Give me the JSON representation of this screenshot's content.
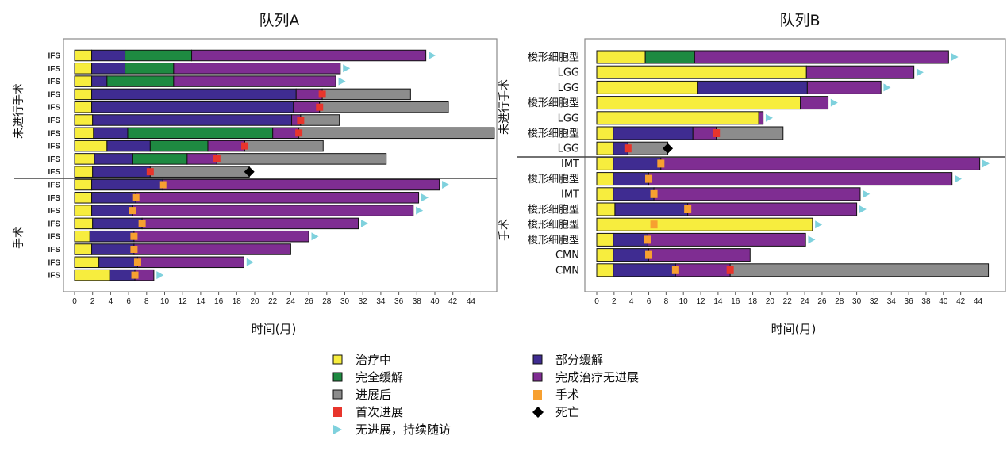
{
  "legend": [
    {
      "key": "on_treatment",
      "label": "治疗中",
      "kind": "rect",
      "color": "#f7ed3e"
    },
    {
      "key": "partial",
      "label": "部分缓解",
      "kind": "rect",
      "color": "#3f2c91"
    },
    {
      "key": "complete",
      "label": "完全缓解",
      "kind": "rect",
      "color": "#1e8a41"
    },
    {
      "key": "off_treatment",
      "label": "完成治疗无进展",
      "kind": "rect",
      "color": "#7f2d92"
    },
    {
      "key": "post_progression",
      "label": "进展后",
      "kind": "rect",
      "color": "#8c8c8c"
    },
    {
      "key": "surgery",
      "label": "手术",
      "kind": "marker",
      "color": "#f7a030"
    },
    {
      "key": "first_progression",
      "label": "首次进展",
      "kind": "marker",
      "color": "#e8352c"
    },
    {
      "key": "death",
      "label": "死亡",
      "kind": "diamond",
      "color": "#000000"
    },
    {
      "key": "follow_up",
      "label": "无进展，持续随访",
      "kind": "arrow",
      "color": "#7fd1dd"
    }
  ],
  "colors": {
    "on_treatment": "#f7ed3e",
    "partial": "#3f2c91",
    "complete": "#1e8a41",
    "off_treatment": "#7f2d92",
    "post_progression": "#8c8c8c",
    "surgery": "#f7a030",
    "first_progression": "#e8352c",
    "death": "#000000",
    "follow_up": "#7fd1dd"
  },
  "chart_data": [
    {
      "type": "swimmer",
      "title": "队列A",
      "xlabel": "时间(月)",
      "xlim": [
        0,
        47
      ],
      "xticks": [
        0,
        2,
        4,
        6,
        8,
        10,
        12,
        14,
        16,
        18,
        20,
        22,
        24,
        26,
        28,
        30,
        32,
        34,
        36,
        38,
        40,
        42,
        44
      ],
      "groups": [
        {
          "label": "未进行手术",
          "rows": [
            0,
            9
          ]
        },
        {
          "label": "手术",
          "rows": [
            10,
            17
          ]
        }
      ],
      "rows": [
        {
          "label": "IFS",
          "segments": [
            [
              "on_treatment",
              0,
              1.9
            ],
            [
              "partial",
              1.9,
              5.6
            ],
            [
              "complete",
              5.6,
              13
            ],
            [
              "off_treatment",
              13,
              39
            ]
          ],
          "arrow": 39.3
        },
        {
          "label": "IFS",
          "segments": [
            [
              "on_treatment",
              0,
              1.9
            ],
            [
              "partial",
              1.9,
              5.6
            ],
            [
              "complete",
              5.6,
              11
            ],
            [
              "off_treatment",
              11,
              29.5
            ]
          ],
          "arrow": 29.8
        },
        {
          "label": "IFS",
          "segments": [
            [
              "on_treatment",
              0,
              1.9
            ],
            [
              "partial",
              1.9,
              3.6
            ],
            [
              "complete",
              3.6,
              11
            ],
            [
              "off_treatment",
              11,
              29
            ]
          ],
          "arrow": 29.3
        },
        {
          "label": "IFS",
          "segments": [
            [
              "on_treatment",
              0,
              1.9
            ],
            [
              "partial",
              1.9,
              24.6
            ],
            [
              "off_treatment",
              24.6,
              27.5
            ],
            [
              "post_progression",
              27.5,
              37.3
            ]
          ],
          "first_progression": 27.5
        },
        {
          "label": "IFS",
          "segments": [
            [
              "on_treatment",
              0,
              1.9
            ],
            [
              "partial",
              1.9,
              24.3
            ],
            [
              "off_treatment",
              24.3,
              27.2
            ],
            [
              "post_progression",
              27.2,
              41.5
            ]
          ],
          "first_progression": 27.2
        },
        {
          "label": "IFS",
          "segments": [
            [
              "on_treatment",
              0,
              2
            ],
            [
              "partial",
              2,
              24.1
            ],
            [
              "off_treatment",
              24.1,
              25.1
            ],
            [
              "post_progression",
              25.1,
              29.4
            ]
          ],
          "first_progression": 25.1
        },
        {
          "label": "IFS",
          "segments": [
            [
              "on_treatment",
              0,
              2.1
            ],
            [
              "partial",
              2.1,
              5.9
            ],
            [
              "complete",
              5.9,
              22
            ],
            [
              "off_treatment",
              22,
              24.9
            ],
            [
              "post_progression",
              24.9,
              46.6
            ]
          ],
          "first_progression": 24.9
        },
        {
          "label": "IFS",
          "segments": [
            [
              "on_treatment",
              0,
              3.6
            ],
            [
              "partial",
              3.6,
              8.4
            ],
            [
              "complete",
              8.4,
              14.8
            ],
            [
              "off_treatment",
              14.8,
              18.9
            ],
            [
              "post_progression",
              18.9,
              27.6
            ]
          ],
          "first_progression": 18.9
        },
        {
          "label": "IFS",
          "segments": [
            [
              "on_treatment",
              0,
              2.2
            ],
            [
              "partial",
              2.2,
              6.4
            ],
            [
              "complete",
              6.4,
              12.5
            ],
            [
              "off_treatment",
              12.5,
              15.8
            ],
            [
              "post_progression",
              15.8,
              34.6
            ]
          ],
          "first_progression": 15.8
        },
        {
          "label": "IFS",
          "segments": [
            [
              "on_treatment",
              0,
              2
            ],
            [
              "partial",
              2,
              8.4
            ],
            [
              "post_progression",
              8.4,
              19.4
            ]
          ],
          "first_progression": 8.4,
          "death": 19.4
        },
        {
          "label": "IFS",
          "segments": [
            [
              "on_treatment",
              0,
              1.9
            ],
            [
              "partial",
              1.9,
              9.8
            ],
            [
              "off_treatment",
              9.8,
              40.5
            ]
          ],
          "surgery": 9.8,
          "arrow": 40.8
        },
        {
          "label": "IFS",
          "segments": [
            [
              "on_treatment",
              0,
              1.9
            ],
            [
              "partial",
              1.9,
              6.8
            ],
            [
              "off_treatment",
              6.8,
              38.2
            ]
          ],
          "surgery": 6.8,
          "arrow": 38.5
        },
        {
          "label": "IFS",
          "segments": [
            [
              "on_treatment",
              0,
              1.9
            ],
            [
              "partial",
              1.9,
              6.4
            ],
            [
              "off_treatment",
              6.4,
              37.6
            ]
          ],
          "surgery": 6.4,
          "arrow": 37.9
        },
        {
          "label": "IFS",
          "segments": [
            [
              "on_treatment",
              0,
              2
            ],
            [
              "partial",
              2,
              7.5
            ],
            [
              "off_treatment",
              7.5,
              31.5
            ]
          ],
          "surgery": 7.5,
          "arrow": 31.8
        },
        {
          "label": "IFS",
          "segments": [
            [
              "on_treatment",
              0,
              1.7
            ],
            [
              "partial",
              1.7,
              6.6
            ],
            [
              "off_treatment",
              6.6,
              26
            ]
          ],
          "surgery": 6.6,
          "arrow": 26.3
        },
        {
          "label": "IFS",
          "segments": [
            [
              "on_treatment",
              0,
              1.9
            ],
            [
              "partial",
              1.9,
              6.6
            ],
            [
              "off_treatment",
              6.6,
              24
            ]
          ],
          "surgery": 6.6
        },
        {
          "label": "IFS",
          "segments": [
            [
              "on_treatment",
              0,
              2.7
            ],
            [
              "partial",
              2.7,
              7
            ],
            [
              "off_treatment",
              7,
              18.8
            ]
          ],
          "surgery": 7,
          "arrow": 19.1
        },
        {
          "label": "IFS",
          "segments": [
            [
              "on_treatment",
              0,
              3.9
            ],
            [
              "partial",
              3.9,
              6.7
            ],
            [
              "off_treatment",
              6.7,
              8.8
            ]
          ],
          "surgery": 6.7,
          "arrow": 9.1
        }
      ]
    },
    {
      "type": "swimmer",
      "title": "队列B",
      "xlabel": "时间(月)",
      "xlim": [
        0,
        46
      ],
      "xticks": [
        0,
        2,
        4,
        6,
        8,
        10,
        12,
        14,
        16,
        18,
        20,
        22,
        24,
        26,
        28,
        30,
        32,
        34,
        36,
        38,
        40,
        42,
        44
      ],
      "groups": [
        {
          "label": "未进行手术",
          "rows": [
            0,
            6
          ]
        },
        {
          "label": "手术",
          "rows": [
            7,
            14
          ]
        }
      ],
      "rows": [
        {
          "label": "梭形细胞型",
          "segments": [
            [
              "on_treatment",
              0,
              5.6
            ],
            [
              "complete",
              5.6,
              11.3
            ],
            [
              "off_treatment",
              11.3,
              40.6
            ]
          ],
          "arrow": 40.9
        },
        {
          "label": "LGG",
          "segments": [
            [
              "on_treatment",
              0,
              24.2
            ],
            [
              "off_treatment",
              24.2,
              36.6
            ]
          ],
          "arrow": 36.9
        },
        {
          "label": "LGG",
          "segments": [
            [
              "on_treatment",
              0,
              11.6
            ],
            [
              "partial",
              11.6,
              24.3
            ],
            [
              "off_treatment",
              24.3,
              32.8
            ]
          ],
          "arrow": 33.1
        },
        {
          "label": "梭形细胞型",
          "segments": [
            [
              "on_treatment",
              0,
              23.5
            ],
            [
              "off_treatment",
              23.5,
              26.7
            ]
          ],
          "arrow": 27
        },
        {
          "label": "LGG",
          "segments": [
            [
              "on_treatment",
              0,
              18.7
            ],
            [
              "off_treatment",
              18.7,
              19.2
            ]
          ],
          "arrow": 19.5
        },
        {
          "label": "梭形细胞型",
          "segments": [
            [
              "on_treatment",
              0,
              1.9
            ],
            [
              "partial",
              1.9,
              11.1
            ],
            [
              "off_treatment",
              11.1,
              13.8
            ],
            [
              "post_progression",
              13.8,
              21.5
            ]
          ],
          "first_progression": 13.8
        },
        {
          "label": "LGG",
          "segments": [
            [
              "on_treatment",
              0,
              1.9
            ],
            [
              "partial",
              1.9,
              3.6
            ],
            [
              "post_progression",
              3.6,
              8.2
            ]
          ],
          "first_progression": 3.6,
          "death": 8.2
        },
        {
          "label": "IMT",
          "segments": [
            [
              "on_treatment",
              0,
              1.9
            ],
            [
              "partial",
              1.9,
              7.4
            ],
            [
              "off_treatment",
              7.4,
              44.2
            ]
          ],
          "surgery": 7.4,
          "arrow": 44.5
        },
        {
          "label": "梭形细胞型",
          "segments": [
            [
              "on_treatment",
              0,
              1.9
            ],
            [
              "partial",
              1.9,
              6
            ],
            [
              "off_treatment",
              6,
              41
            ]
          ],
          "surgery": 6,
          "arrow": 41.3
        },
        {
          "label": "IMT",
          "segments": [
            [
              "on_treatment",
              0,
              1.9
            ],
            [
              "partial",
              1.9,
              6.6
            ],
            [
              "off_treatment",
              6.6,
              30.4
            ]
          ],
          "surgery": 6.6,
          "arrow": 30.7
        },
        {
          "label": "梭形细胞型",
          "segments": [
            [
              "on_treatment",
              0,
              2.1
            ],
            [
              "partial",
              2.1,
              10.5
            ],
            [
              "off_treatment",
              10.5,
              30
            ]
          ],
          "surgery": 10.5,
          "arrow": 30.3
        },
        {
          "label": "梭形细胞型",
          "segments": [
            [
              "on_treatment",
              0,
              24.9
            ]
          ],
          "surgery": 6.6,
          "arrow": 25.2
        },
        {
          "label": "梭形细胞型",
          "segments": [
            [
              "on_treatment",
              0,
              1.9
            ],
            [
              "partial",
              1.9,
              5.9
            ],
            [
              "off_treatment",
              5.9,
              24.1
            ]
          ],
          "surgery": 5.9,
          "arrow": 24.4
        },
        {
          "label": "CMN",
          "segments": [
            [
              "on_treatment",
              0,
              1.9
            ],
            [
              "partial",
              1.9,
              6
            ],
            [
              "off_treatment",
              6,
              17.7
            ]
          ],
          "surgery": 6
        },
        {
          "label": "CMN",
          "segments": [
            [
              "on_treatment",
              0,
              1.9
            ],
            [
              "partial",
              1.9,
              9.1
            ],
            [
              "off_treatment",
              9.1,
              15.4
            ],
            [
              "post_progression",
              15.4,
              45.2
            ]
          ],
          "surgery": 9.1,
          "first_progression": 15.4
        }
      ]
    }
  ]
}
